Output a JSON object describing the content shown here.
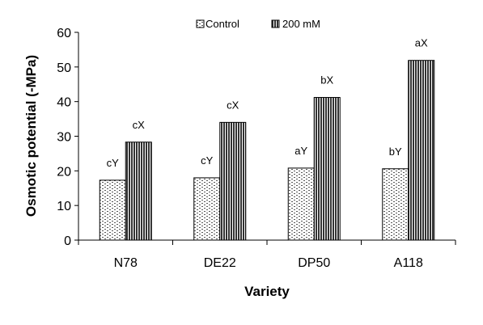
{
  "chart_data": {
    "type": "bar",
    "title": "",
    "xlabel": "Variety",
    "ylabel": "Osmotic potential (-MPa)",
    "categories": [
      "N78",
      "DE22",
      "DP50",
      "A118"
    ],
    "ylim": [
      0,
      60
    ],
    "yticks": [
      0,
      10,
      20,
      30,
      40,
      50,
      60
    ],
    "grid": false,
    "legend_position": "top",
    "series": [
      {
        "name": "Control",
        "pattern": "dots",
        "values": [
          17.3,
          18.0,
          20.8,
          20.6
        ],
        "labels": [
          "cY",
          "cY",
          "aY",
          "bY"
        ]
      },
      {
        "name": "200 mM",
        "pattern": "vertical-stripes",
        "values": [
          28.3,
          34.0,
          41.2,
          51.9
        ],
        "labels": [
          "cX",
          "cX",
          "bX",
          "aX"
        ]
      }
    ]
  }
}
